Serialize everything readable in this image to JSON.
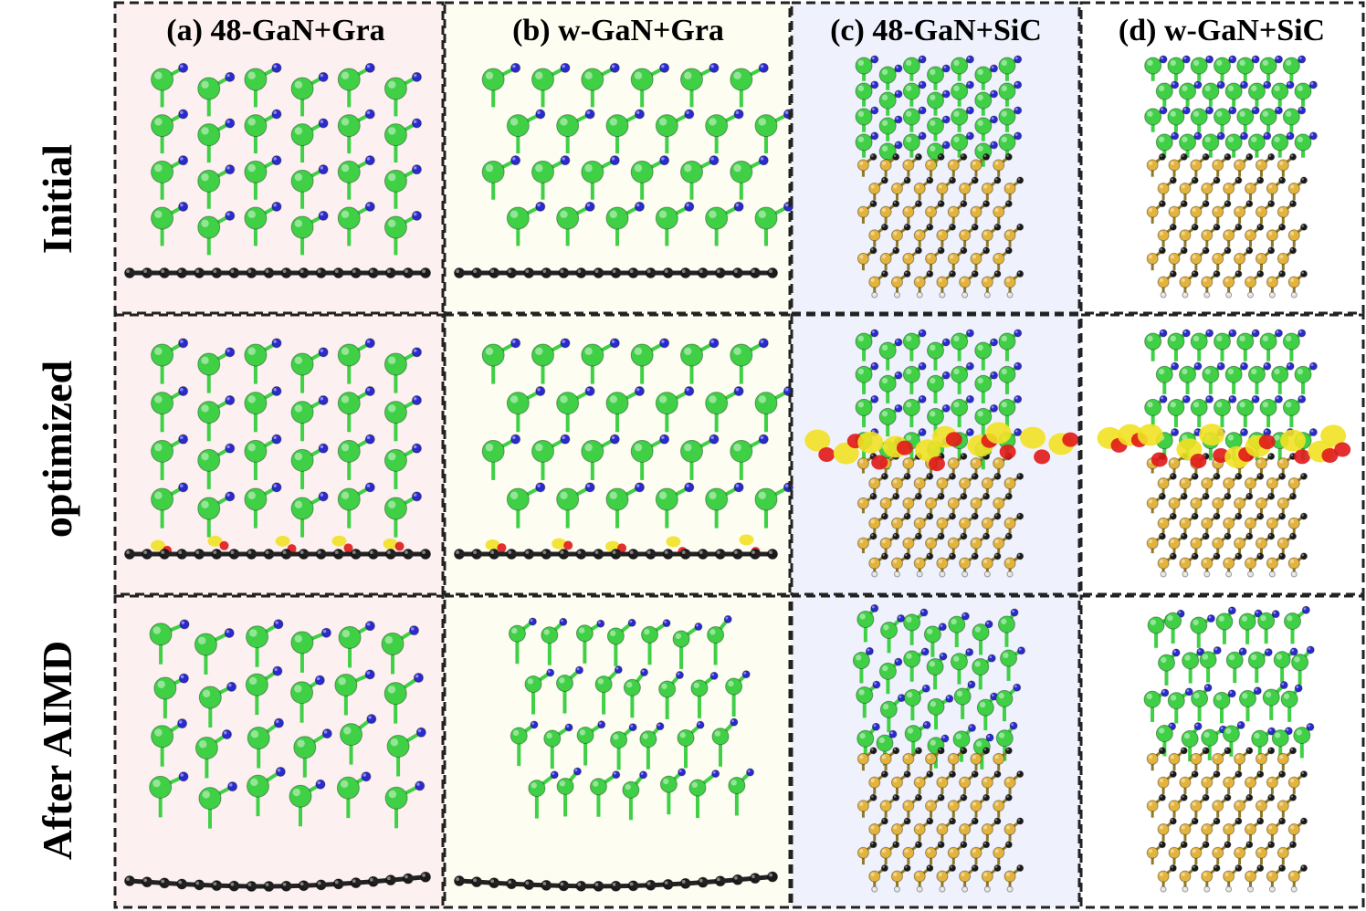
{
  "columns": [
    {
      "id": "a",
      "title": "(a) 48-GaN+Gra",
      "lattice": "48",
      "substrate": "graphene",
      "bg": "#fdf0f0"
    },
    {
      "id": "b",
      "title": "(b) w-GaN+Gra",
      "lattice": "w",
      "substrate": "graphene",
      "bg": "#fdfdf2"
    },
    {
      "id": "c",
      "title": "(c) 48-GaN+SiC",
      "lattice": "48",
      "substrate": "sic",
      "bg": "#eff2fc"
    },
    {
      "id": "d",
      "title": "(d) w-GaN+SiC",
      "lattice": "w",
      "substrate": "sic",
      "bg": "#ffffff"
    }
  ],
  "rows": [
    {
      "id": "initial",
      "label": "Initial",
      "state": "initial"
    },
    {
      "id": "optimized",
      "label": "optimized",
      "state": "optimized"
    },
    {
      "id": "aimd",
      "label": "After AIMD",
      "state": "aimd"
    }
  ],
  "colors": {
    "ga_atom": "#3fd046",
    "n_atom": "#2a2ad0",
    "carbon_atom": "#1a1a1a",
    "si_atom": "#e3b33c",
    "h_atom": "#e6e6e6",
    "charge_accumulation": "#f2e125",
    "charge_depletion": "#e01818",
    "frame": "#222222"
  }
}
